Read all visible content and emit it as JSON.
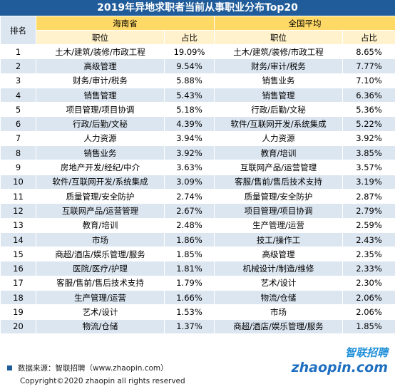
{
  "title": "2019年异地求职者当前从事职业分布Top20",
  "table": {
    "rank_header": "排名",
    "groups": [
      "海南省",
      "全国平均"
    ],
    "columns": [
      "职位",
      "占比",
      "职位",
      "占比"
    ],
    "rows": [
      [
        "1",
        "土木/建筑/装修/市政工程",
        "19.09%",
        "土木/建筑/装修/市政工程",
        "8.65%"
      ],
      [
        "2",
        "高级管理",
        "9.54%",
        "财务/审计/税务",
        "7.77%"
      ],
      [
        "3",
        "财务/审计/税务",
        "5.88%",
        "销售业务",
        "7.10%"
      ],
      [
        "4",
        "销售管理",
        "5.43%",
        "销售管理",
        "6.36%"
      ],
      [
        "5",
        "项目管理/项目协调",
        "5.18%",
        "行政/后勤/文秘",
        "5.36%"
      ],
      [
        "6",
        "行政/后勤/文秘",
        "4.39%",
        "软件/互联网开发/系统集成",
        "5.22%"
      ],
      [
        "7",
        "人力资源",
        "3.94%",
        "人力资源",
        "3.92%"
      ],
      [
        "8",
        "销售业务",
        "3.92%",
        "教育/培训",
        "3.85%"
      ],
      [
        "9",
        "房地产开发/经纪/中介",
        "3.63%",
        "互联网产品/运营管理",
        "3.57%"
      ],
      [
        "10",
        "软件/互联网开发/系统集成",
        "3.09%",
        "客服/售前/售后技术支持",
        "3.19%"
      ],
      [
        "11",
        "质量管理/安全防护",
        "2.74%",
        "质量管理/安全防护",
        "2.87%"
      ],
      [
        "12",
        "互联网产品/运营管理",
        "2.67%",
        "项目管理/项目协调",
        "2.79%"
      ],
      [
        "13",
        "教育/培训",
        "2.48%",
        "生产管理/运营",
        "2.59%"
      ],
      [
        "14",
        "市场",
        "1.86%",
        "技工/操作工",
        "2.43%"
      ],
      [
        "15",
        "商超/酒店/娱乐管理/服务",
        "1.85%",
        "高级管理",
        "2.35%"
      ],
      [
        "16",
        "医院/医疗/护理",
        "1.81%",
        "机械设计/制造/维修",
        "2.33%"
      ],
      [
        "17",
        "客服/售前/售后技术支持",
        "1.79%",
        "艺术/设计",
        "2.30%"
      ],
      [
        "18",
        "生产管理/运营",
        "1.66%",
        "物流/仓储",
        "2.06%"
      ],
      [
        "19",
        "艺术/设计",
        "1.53%",
        "市场",
        "2.06%"
      ],
      [
        "20",
        "物流/仓储",
        "1.37%",
        "商超/酒店/娱乐管理/服务",
        "1.85%"
      ]
    ]
  },
  "footer": {
    "source": "数据来源：智联招聘（www.zhaopin.com）",
    "copyright": "Copyright©2020 zhaopin all rights reserved"
  },
  "logo": {
    "name": "智联招聘",
    "domain": "zhaopin.com"
  }
}
